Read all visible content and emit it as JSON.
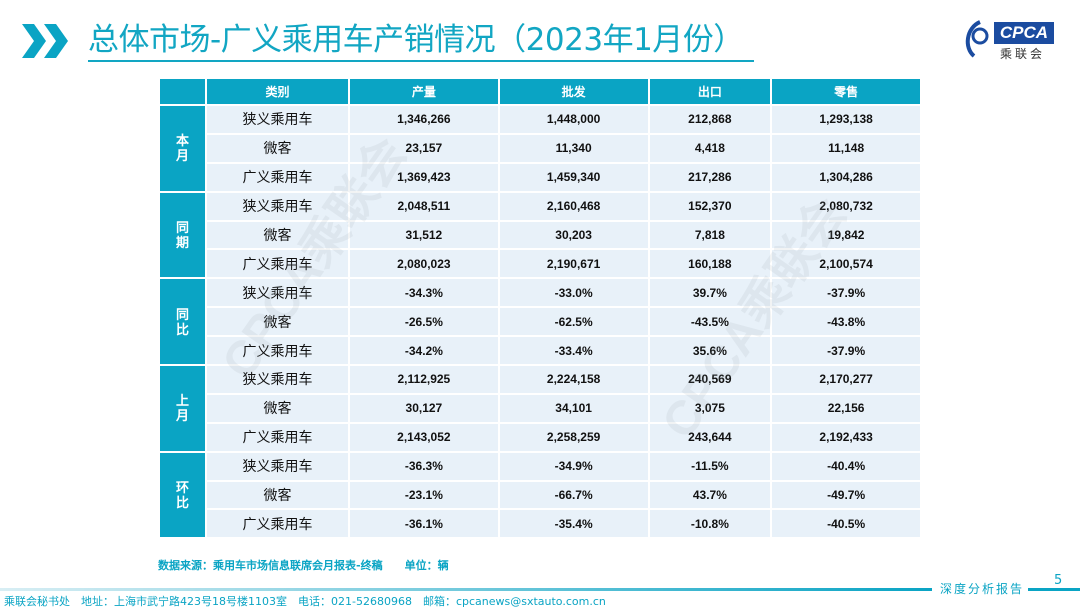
{
  "header": {
    "title": "总体市场-广义乘用车产销情况（2023年1月份）",
    "logo_text": "CPCA",
    "logo_sub": "乘联会"
  },
  "colors": {
    "accent": "#0aa4c4",
    "cell_bg": "#e8f1f9",
    "logo_blue": "#1b4ca0"
  },
  "table": {
    "headers": [
      "",
      "类别",
      "产量",
      "批发",
      "出口",
      "零售"
    ],
    "groups": [
      {
        "label": "本月",
        "rows": [
          [
            "狭义乘用车",
            "1,346,266",
            "1,448,000",
            "212,868",
            "1,293,138"
          ],
          [
            "微客",
            "23,157",
            "11,340",
            "4,418",
            "11,148"
          ],
          [
            "广义乘用车",
            "1,369,423",
            "1,459,340",
            "217,286",
            "1,304,286"
          ]
        ]
      },
      {
        "label": "同期",
        "rows": [
          [
            "狭义乘用车",
            "2,048,511",
            "2,160,468",
            "152,370",
            "2,080,732"
          ],
          [
            "微客",
            "31,512",
            "30,203",
            "7,818",
            "19,842"
          ],
          [
            "广义乘用车",
            "2,080,023",
            "2,190,671",
            "160,188",
            "2,100,574"
          ]
        ]
      },
      {
        "label": "同比",
        "rows": [
          [
            "狭义乘用车",
            "-34.3%",
            "-33.0%",
            "39.7%",
            "-37.9%"
          ],
          [
            "微客",
            "-26.5%",
            "-62.5%",
            "-43.5%",
            "-43.8%"
          ],
          [
            "广义乘用车",
            "-34.2%",
            "-33.4%",
            "35.6%",
            "-37.9%"
          ]
        ]
      },
      {
        "label": "上月",
        "rows": [
          [
            "狭义乘用车",
            "2,112,925",
            "2,224,158",
            "240,569",
            "2,170,277"
          ],
          [
            "微客",
            "30,127",
            "34,101",
            "3,075",
            "22,156"
          ],
          [
            "广义乘用车",
            "2,143,052",
            "2,258,259",
            "243,644",
            "2,192,433"
          ]
        ]
      },
      {
        "label": "环比",
        "rows": [
          [
            "狭义乘用车",
            "-36.3%",
            "-34.9%",
            "-11.5%",
            "-40.4%"
          ],
          [
            "微客",
            "-23.1%",
            "-66.7%",
            "43.7%",
            "-49.7%"
          ],
          [
            "广义乘用车",
            "-36.1%",
            "-35.4%",
            "-10.8%",
            "-40.5%"
          ]
        ]
      }
    ]
  },
  "watermark": "CPCA乘联会",
  "source": "数据来源：乘用车市场信息联席会月报表-终稿　　单位：辆",
  "page_number": "5",
  "report_tag": "深度分析报告",
  "footer": "乘联会秘书处　地址：上海市武宁路423号18号楼1103室　电话：021-52680968　邮箱：cpcanews@sxtauto.com.cn"
}
